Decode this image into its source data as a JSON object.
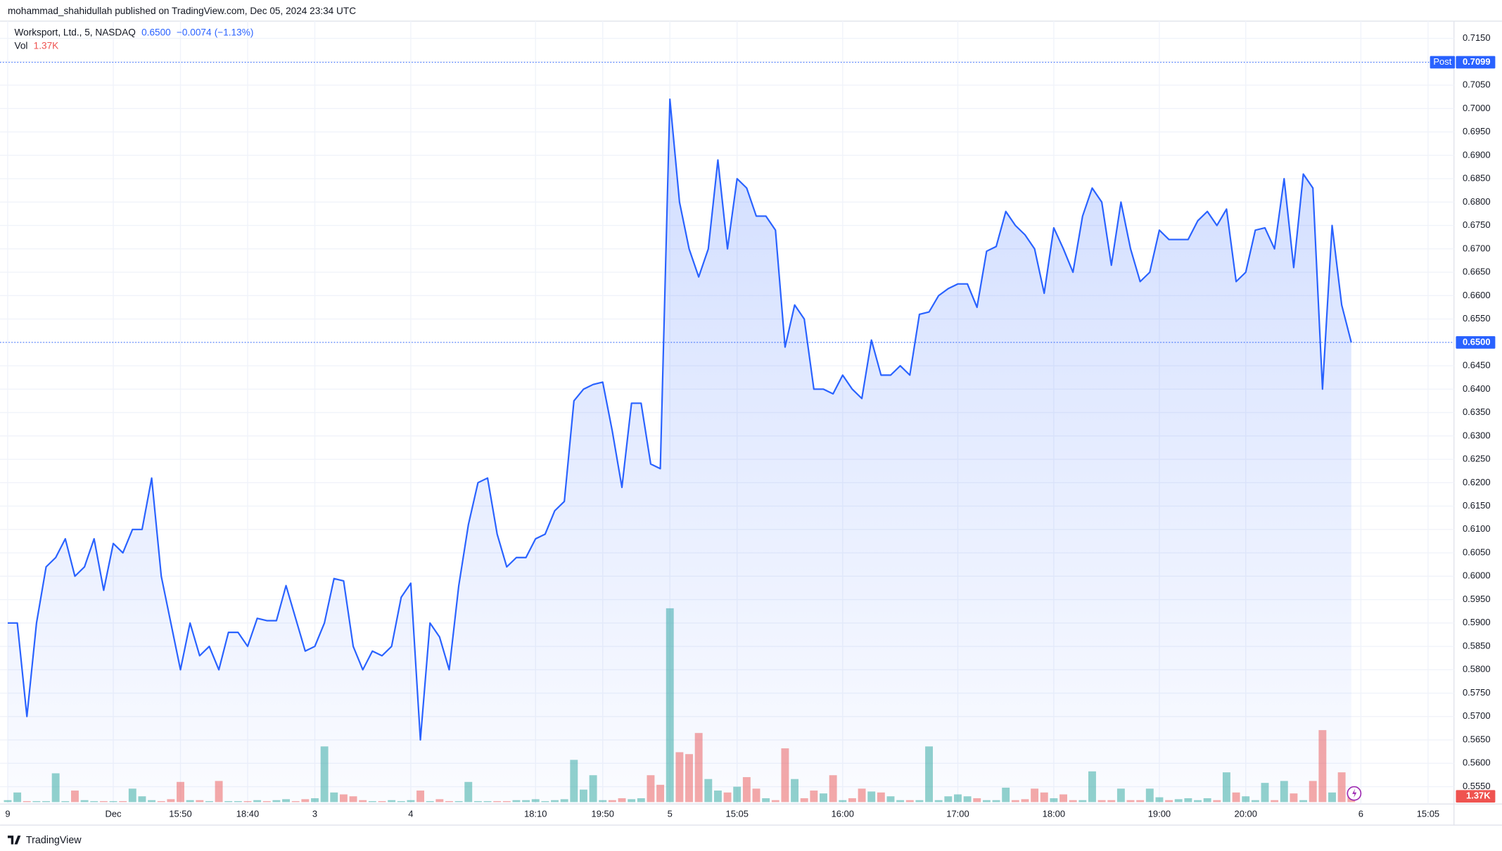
{
  "chart_data": {
    "type": "area",
    "header": "mohammad_shahidullah published on TradingView.com, Dec 05, 2024 23:34 UTC",
    "title": "Worksport, Ltd., 5, NASDAQ",
    "last": {
      "value": 0.65,
      "label": "0.6500"
    },
    "change": {
      "value": -0.0074,
      "label": "−0.0074"
    },
    "change_pct": {
      "value": -1.13,
      "label": "(−1.13%)"
    },
    "brand": "TradingView",
    "color": "#2962ff",
    "grid": true,
    "categories": [
      "9",
      null,
      null,
      null,
      null,
      null,
      null,
      null,
      null,
      null,
      null,
      "Dec",
      null,
      null,
      null,
      null,
      null,
      null,
      "15:50",
      null,
      null,
      null,
      null,
      null,
      null,
      "18:40",
      null,
      null,
      null,
      null,
      null,
      null,
      "3",
      null,
      null,
      null,
      null,
      null,
      null,
      null,
      null,
      null,
      "4",
      null,
      null,
      null,
      null,
      null,
      null,
      null,
      null,
      null,
      null,
      null,
      null,
      "18:10",
      null,
      null,
      null,
      null,
      null,
      null,
      "19:50",
      null,
      null,
      null,
      null,
      null,
      null,
      "5",
      null,
      null,
      null,
      null,
      null,
      null,
      "15:05",
      null,
      null,
      null,
      null,
      null,
      null,
      null,
      null,
      null,
      null,
      "16:00",
      null,
      null,
      null,
      null,
      null,
      null,
      null,
      null,
      null,
      null,
      null,
      "17:00",
      null,
      null,
      null,
      null,
      null,
      null,
      null,
      null,
      null,
      "18:00",
      null,
      null,
      null,
      null,
      null,
      null,
      null,
      null,
      null,
      null,
      "19:00",
      null,
      null,
      null,
      null,
      null,
      null,
      null,
      null,
      "20:00",
      null,
      null,
      null,
      null,
      null,
      null,
      null,
      null,
      null,
      null,
      null,
      "6",
      null,
      null,
      null,
      null,
      null,
      null,
      "15:05"
    ],
    "values": [
      0.59,
      0.59,
      0.57,
      0.59,
      0.602,
      0.604,
      0.608,
      0.6,
      0.602,
      0.608,
      0.597,
      0.607,
      0.605,
      0.61,
      0.61,
      0.621,
      0.6,
      0.59,
      0.58,
      0.59,
      0.583,
      0.585,
      0.58,
      0.588,
      0.588,
      0.585,
      0.591,
      0.5905,
      0.5905,
      0.598,
      0.591,
      0.584,
      0.585,
      0.59,
      0.5995,
      0.599,
      0.585,
      0.58,
      0.584,
      0.583,
      0.585,
      0.5955,
      0.5985,
      0.565,
      0.59,
      0.587,
      0.58,
      0.598,
      0.611,
      0.62,
      0.621,
      0.609,
      0.602,
      0.604,
      0.604,
      0.608,
      0.609,
      0.614,
      0.616,
      0.6375,
      0.64,
      0.641,
      0.6415,
      0.631,
      0.619,
      0.637,
      0.637,
      0.624,
      0.623,
      0.702,
      0.68,
      0.67,
      0.664,
      0.67,
      0.689,
      0.67,
      0.685,
      0.683,
      0.677,
      0.677,
      0.674,
      0.649,
      0.658,
      0.655,
      0.64,
      0.64,
      0.639,
      0.643,
      0.64,
      0.638,
      0.6505,
      0.643,
      0.643,
      0.645,
      0.643,
      0.656,
      0.6565,
      0.66,
      0.6615,
      0.6625,
      0.6625,
      0.6575,
      0.6695,
      0.6705,
      0.678,
      0.675,
      0.673,
      0.67,
      0.6605,
      0.6745,
      0.67,
      0.665,
      0.677,
      0.683,
      0.68,
      0.6665,
      0.68,
      0.67,
      0.663,
      0.665,
      0.674,
      0.672,
      0.672,
      0.672,
      0.676,
      0.678,
      0.675,
      0.6785,
      0.663,
      0.665,
      0.674,
      0.6745,
      0.67,
      0.685,
      0.666,
      0.686,
      0.683,
      0.64,
      0.675,
      0.658,
      0.65,
      null,
      null,
      null,
      null,
      null,
      null,
      null,
      null
    ],
    "ylim": [
      0.5513,
      0.7187
    ],
    "yticks": [
      {
        "value": 0.555,
        "label": "0.5550"
      },
      {
        "value": 0.56,
        "label": "0.5600"
      },
      {
        "value": 0.565,
        "label": "0.5650"
      },
      {
        "value": 0.57,
        "label": "0.5700"
      },
      {
        "value": 0.575,
        "label": "0.5750"
      },
      {
        "value": 0.58,
        "label": "0.5800"
      },
      {
        "value": 0.585,
        "label": "0.5850"
      },
      {
        "value": 0.59,
        "label": "0.5900"
      },
      {
        "value": 0.595,
        "label": "0.5950"
      },
      {
        "value": 0.6,
        "label": "0.6000"
      },
      {
        "value": 0.605,
        "label": "0.6050"
      },
      {
        "value": 0.61,
        "label": "0.6100"
      },
      {
        "value": 0.615,
        "label": "0.6150"
      },
      {
        "value": 0.62,
        "label": "0.6200"
      },
      {
        "value": 0.625,
        "label": "0.6250"
      },
      {
        "value": 0.63,
        "label": "0.6300"
      },
      {
        "value": 0.635,
        "label": "0.6350"
      },
      {
        "value": 0.64,
        "label": "0.6400"
      },
      {
        "value": 0.645,
        "label": "0.6450"
      },
      {
        "value": 0.65,
        "label": "0.6500"
      },
      {
        "value": 0.655,
        "label": "0.6550"
      },
      {
        "value": 0.66,
        "label": "0.6600"
      },
      {
        "value": 0.665,
        "label": "0.6650"
      },
      {
        "value": 0.67,
        "label": "0.6700"
      },
      {
        "value": 0.675,
        "label": "0.6750"
      },
      {
        "value": 0.68,
        "label": "0.6800"
      },
      {
        "value": 0.685,
        "label": "0.6850"
      },
      {
        "value": 0.69,
        "label": "0.6900"
      },
      {
        "value": 0.695,
        "label": "0.6950"
      },
      {
        "value": 0.7,
        "label": "0.7000"
      },
      {
        "value": 0.705,
        "label": "0.7050"
      },
      {
        "value": 0.71,
        "label": "0.7100"
      },
      {
        "value": 0.715,
        "label": "0.7150"
      }
    ],
    "post": {
      "name": "Post",
      "value": 0.7099,
      "label": "0.7099"
    },
    "volume": {
      "name": "Vol",
      "last": {
        "value": 1370,
        "label": "1.37K"
      },
      "up_color": "rgba(38,166,154,0.5)",
      "down_color": "rgba(239,83,80,0.5)",
      "values": [
        460,
        2300,
        230,
        230,
        230,
        6900,
        230,
        2760,
        460,
        230,
        230,
        230,
        230,
        3220,
        1380,
        460,
        230,
        690,
        4830,
        460,
        460,
        230,
        5060,
        230,
        230,
        230,
        460,
        230,
        460,
        690,
        230,
        690,
        920,
        13340,
        2300,
        1840,
        1380,
        460,
        230,
        230,
        460,
        230,
        460,
        2760,
        230,
        690,
        230,
        230,
        4830,
        230,
        230,
        230,
        230,
        460,
        460,
        690,
        230,
        460,
        690,
        10120,
        2990,
        6440,
        460,
        460,
        920,
        690,
        920,
        6440,
        4140,
        46460,
        11960,
        11500,
        16560,
        5520,
        2760,
        2300,
        3680,
        5980,
        3220,
        920,
        460,
        12880,
        5520,
        920,
        2760,
        2070,
        6440,
        460,
        920,
        3220,
        2530,
        2300,
        1380,
        460,
        460,
        460,
        13340,
        460,
        1380,
        1840,
        1380,
        920,
        460,
        460,
        3450,
        460,
        690,
        3220,
        2300,
        920,
        1840,
        460,
        460,
        7360,
        460,
        460,
        3220,
        460,
        460,
        3220,
        1150,
        460,
        690,
        920,
        460,
        920,
        460,
        7130,
        2300,
        1380,
        460,
        4600,
        460,
        5060,
        2070,
        460,
        5060,
        17250,
        2300,
        7130,
        1370,
        null,
        null,
        null,
        null,
        null,
        null,
        null,
        null
      ]
    }
  }
}
